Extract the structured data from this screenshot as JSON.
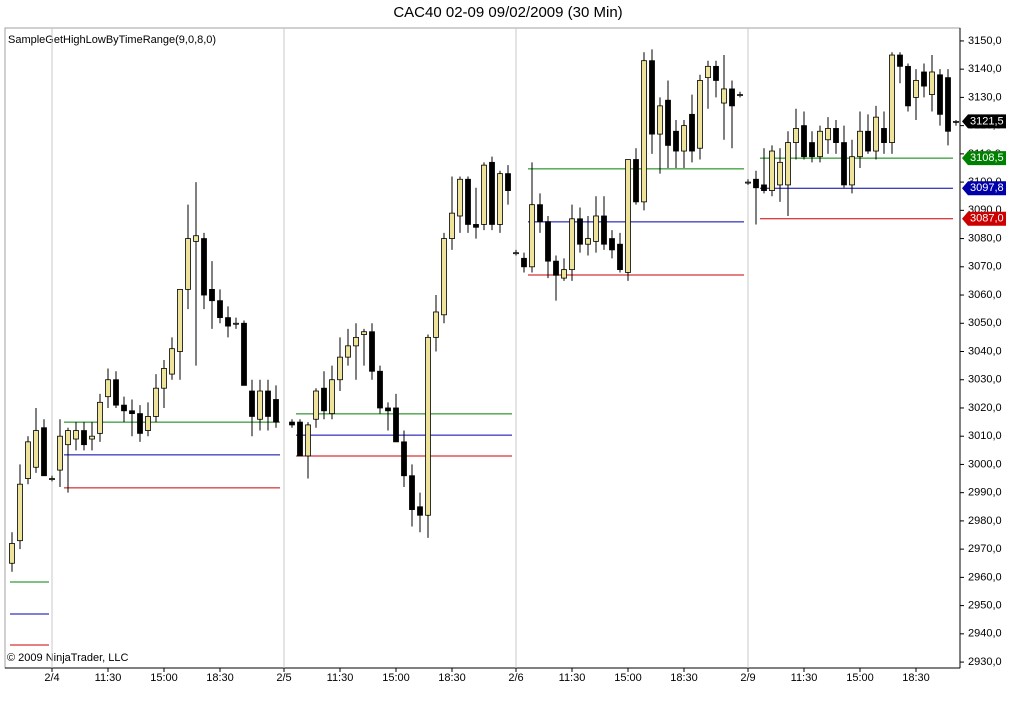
{
  "chart_data": {
    "type": "candlestick",
    "title": "CAC40 02-09  09/02/2009 (30 Min)",
    "indicator": "SampleGetHighLowByTimeRange(9,0,8,0)",
    "copyright": "© 2009 NinjaTrader, LLC",
    "up_color": "#eee39a",
    "down_color": "#000000",
    "categories": [
      null,
      null,
      null,
      null,
      null,
      "2/4",
      null,
      null,
      null,
      null,
      null,
      null,
      "11:30",
      null,
      null,
      null,
      null,
      null,
      null,
      "15:00",
      null,
      null,
      null,
      null,
      null,
      null,
      "18:30",
      null,
      null,
      null,
      null,
      null,
      null,
      null,
      "2/5",
      null,
      null,
      null,
      null,
      null,
      null,
      "11:30",
      null,
      null,
      null,
      null,
      null,
      null,
      "15:00",
      null,
      null,
      null,
      null,
      null,
      null,
      "18:30",
      null,
      null,
      null,
      null,
      null,
      null,
      null,
      "2/6",
      null,
      null,
      null,
      null,
      null,
      null,
      "11:30",
      null,
      null,
      null,
      null,
      null,
      null,
      "15:00",
      null,
      null,
      null,
      null,
      null,
      null,
      "18:30",
      null,
      null,
      null,
      null,
      null,
      null,
      null,
      "2/9",
      null,
      null,
      null,
      null,
      null,
      null,
      "11:30",
      null,
      null,
      null,
      null,
      null,
      null,
      "15:00",
      null,
      null,
      null,
      null,
      null,
      null,
      "18:30",
      null,
      null,
      null,
      null,
      null
    ],
    "open": [
      2965,
      2973,
      2995,
      2999,
      3013,
      2995,
      2998,
      3007,
      3009,
      3012,
      3009,
      3011,
      3024,
      3030,
      3021,
      3019,
      3018,
      3012,
      3017,
      3027,
      3032,
      3040,
      3062,
      3079,
      3080,
      3062,
      3058,
      3052,
      3050,
      3050,
      3026,
      3016,
      3026,
      3023,
      null,
      3015,
      3015,
      3003,
      3016,
      3027,
      3018,
      3030,
      3038,
      3042,
      3046,
      3047,
      3033,
      3020,
      3020,
      3008,
      2996,
      2985,
      2982,
      3045,
      3053,
      3080,
      3088,
      3101,
      3085,
      3085,
      3107,
      3085,
      3103,
      3075,
      3073,
      3070,
      3092,
      3086,
      3072,
      3066,
      3069,
      3087,
      3078,
      3079,
      3088,
      3080,
      3078,
      3068,
      3108,
      3093,
      3143,
      3117,
      3129,
      3118,
      3111,
      3124,
      3112,
      3137,
      3141,
      3128,
      3133,
      3131,
      3100,
      3101,
      3099,
      3097,
      3099,
      3099,
      3114,
      3120,
      3114,
      3109,
      3115,
      3119,
      3114,
      3099,
      3109,
      3118,
      3111,
      3119,
      3114,
      3145,
      3141,
      3130,
      3139,
      3131,
      3138,
      3137,
      3121.5
    ],
    "high": [
      2976,
      3000,
      3010,
      3020,
      3016,
      2996,
      3016,
      3013,
      3015,
      3015,
      3015,
      3025,
      3034,
      3033,
      3024,
      3023,
      3021,
      3022,
      3032,
      3037,
      3045,
      3062,
      3092,
      3100,
      3082,
      3072,
      3062,
      3056,
      3052,
      3051,
      3030,
      3030,
      3030,
      3028,
      null,
      3016,
      3016,
      3015,
      3027,
      3033,
      3035,
      3045,
      3048,
      3050,
      3048,
      3050,
      3035,
      3022,
      3025,
      3012,
      3000,
      2990,
      3046,
      3060,
      3082,
      3102,
      3102,
      3102,
      3098,
      3107,
      3109,
      3104,
      3106,
      3076,
      3075,
      3107,
      3096,
      3088,
      3074,
      3073,
      3092,
      3091,
      3088,
      3095,
      3095,
      3083,
      3082,
      3108,
      3112,
      3146,
      3147,
      3130,
      3136,
      3122,
      3122,
      3131,
      3138,
      3143,
      3143,
      3145,
      3136,
      3132,
      3101,
      3104,
      3112,
      3113,
      3112,
      3118,
      3126,
      3125,
      3118,
      3120,
      3123,
      3122,
      3120,
      3115,
      3125,
      3124,
      3127,
      3125,
      3146,
      3146,
      3142,
      3140,
      3142,
      3145,
      3140,
      3140,
      3122
    ],
    "low": [
      2962,
      2970,
      2993,
      2997,
      2996,
      2994,
      2992,
      2990,
      3005,
      3005,
      3005,
      3008,
      3020,
      3020,
      3015,
      3010,
      3008,
      3010,
      3015,
      3020,
      3030,
      3030,
      3055,
      3035,
      3055,
      3048,
      3050,
      3045,
      3048,
      3028,
      3010,
      3012,
      3012,
      3013,
      null,
      3013,
      3003,
      2995,
      3013,
      3016,
      3016,
      3026,
      3035,
      3030,
      3035,
      3030,
      3018,
      3012,
      3008,
      2992,
      2978,
      2976,
      2974,
      3040,
      3050,
      3076,
      3082,
      3082,
      3080,
      3083,
      3083,
      3082,
      3092,
      3074,
      3068,
      3068,
      3082,
      3066,
      3058,
      3065,
      3065,
      3075,
      3074,
      3075,
      3076,
      3073,
      3068,
      3065,
      3092,
      3090,
      3110,
      3103,
      3105,
      3105,
      3105,
      3107,
      3108,
      3126,
      3130,
      3115,
      3112,
      3130,
      3099,
      3085,
      3096,
      3095,
      3093,
      3088,
      3108,
      3108,
      3107,
      3107,
      3110,
      3110,
      3098,
      3096,
      3105,
      3110,
      3108,
      3110,
      3110,
      3135,
      3125,
      3122,
      3130,
      3125,
      3120,
      3113,
      3120
    ],
    "close": [
      2972,
      2993,
      3008,
      3012,
      2996,
      2995,
      3010,
      3012,
      3012,
      3007,
      3010,
      3022,
      3030,
      3021,
      3019,
      3018,
      3011,
      3017,
      3027,
      3034,
      3041,
      3062,
      3080,
      3081,
      3060,
      3058,
      3052,
      3049,
      3050,
      3028,
      3017,
      3026,
      3017,
      3015,
      null,
      3014,
      3003,
      3014,
      3026,
      3019,
      3030,
      3038,
      3042,
      3045,
      3047,
      3033,
      3020,
      3019,
      3008,
      2996,
      2984,
      2982,
      3045,
      3054,
      3080,
      3089,
      3101,
      3085,
      3084,
      3106,
      3085,
      3103,
      3097,
      3075,
      3070,
      3092,
      3086,
      3072,
      3067,
      3069,
      3087,
      3078,
      3080,
      3088,
      3078,
      3076,
      3069,
      3108,
      3093,
      3143,
      3117,
      3127,
      3113,
      3111,
      3120,
      3111,
      3136,
      3141,
      3136,
      3133,
      3127,
      3131,
      3100,
      3098,
      3097,
      3111,
      3107,
      3114,
      3119,
      3109,
      3109,
      3118,
      3119,
      3114,
      3099,
      3109,
      3118,
      3111,
      3123,
      3114,
      3145,
      3141,
      3127,
      3136,
      3134,
      3139,
      3124,
      3118,
      3121.5
    ],
    "last": {
      "value": 3121.5,
      "label": "3121,5"
    },
    "levels": [
      {
        "color": "#008000",
        "values": [
          3015,
          3017.9,
          3104.7,
          3108.5
        ],
        "value_labels": [
          null,
          null,
          null,
          "3108,5"
        ]
      },
      {
        "color": "#0000aa",
        "values": [
          3003.4,
          3010.4,
          3085.9,
          3097.8
        ],
        "value_labels": [
          null,
          null,
          null,
          "3097,8"
        ]
      },
      {
        "color": "#cc0000",
        "values": [
          2991.7,
          3003,
          3067.1,
          3087.0
        ],
        "value_labels": [
          null,
          null,
          null,
          "3087,0"
        ]
      }
    ],
    "ylim": [
      2927.9,
      3152.1
    ],
    "yticks": [
      {
        "value": 2930,
        "label": "2930,0"
      },
      {
        "value": 2940,
        "label": "2940,0"
      },
      {
        "value": 2950,
        "label": "2950,0"
      },
      {
        "value": 2960,
        "label": "2960,0"
      },
      {
        "value": 2970,
        "label": "2970,0"
      },
      {
        "value": 2980,
        "label": "2980,0"
      },
      {
        "value": 2990,
        "label": "2990,0"
      },
      {
        "value": 3000,
        "label": "3000,0"
      },
      {
        "value": 3010,
        "label": "3010,0"
      },
      {
        "value": 3020,
        "label": "3020,0"
      },
      {
        "value": 3030,
        "label": "3030,0"
      },
      {
        "value": 3040,
        "label": "3040,0"
      },
      {
        "value": 3050,
        "label": "3050,0"
      },
      {
        "value": 3060,
        "label": "3060,0"
      },
      {
        "value": 3070,
        "label": "3070,0"
      },
      {
        "value": 3080,
        "label": "3080,0"
      },
      {
        "value": 3090,
        "label": "3090,0"
      },
      {
        "value": 3100,
        "label": "3100,0"
      },
      {
        "value": 3110,
        "label": "3110,0"
      },
      {
        "value": 3120,
        "label": "3120,0"
      },
      {
        "value": 3130,
        "label": "3130,0"
      },
      {
        "value": 3140,
        "label": "3140,0"
      },
      {
        "value": 3150,
        "label": "3150,0"
      }
    ]
  }
}
